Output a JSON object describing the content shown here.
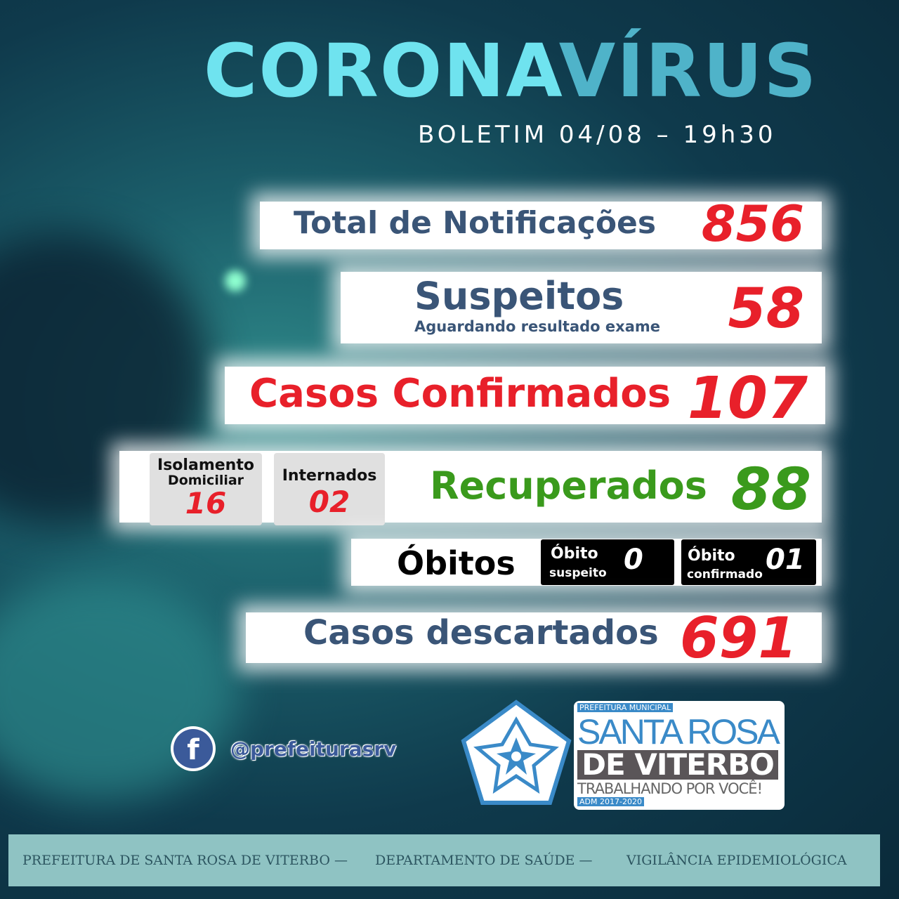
{
  "title": {
    "part1": "CORONA",
    "part2": "VÍRUS",
    "color1": "#6fe3ef",
    "color2": "#4fb3c9"
  },
  "bulletin": "BOLETIM 04/08 – 19h30",
  "rows": {
    "notificacoes": {
      "label": "Total de Notificações",
      "value": "856"
    },
    "suspeitos": {
      "label": "Suspeitos",
      "sublabel": "Aguardando resultado exame",
      "value": "58"
    },
    "confirmados": {
      "label": "Casos Confirmados",
      "value": "107"
    },
    "recuperados": {
      "label": "Recuperados",
      "value": "88",
      "color": "#3a9a1c"
    },
    "isolamento": {
      "label1": "Isolamento",
      "label2": "Domiciliar",
      "value": "16"
    },
    "internados": {
      "label": "Internados",
      "value": "02"
    },
    "obitos": {
      "label": "Óbitos",
      "suspeito": {
        "label1": "Óbito",
        "label2": "suspeito",
        "value": "0"
      },
      "confirmado": {
        "label1": "Óbito",
        "label2": "confirmado",
        "value": "01"
      }
    },
    "descartados": {
      "label": "Casos descartados",
      "value": "691"
    }
  },
  "social": {
    "icon": "facebook-icon",
    "handle": "@prefeiturasrv"
  },
  "logo": {
    "top": "PREFEITURA MUNICIPAL",
    "line1": "SANTA ROSA",
    "line2": "DE VITERBO",
    "slogan": "TRABALHANDO POR VOCÊ!",
    "adm": "ADM 2017-2020"
  },
  "footer": {
    "part1": "PREFEITURA DE SANTA ROSA DE VITERBO —",
    "part2": "DEPARTAMENTO DE SAÚDE —",
    "part3": "VIGILÂNCIA EPIDEMIOLÓGICA"
  }
}
